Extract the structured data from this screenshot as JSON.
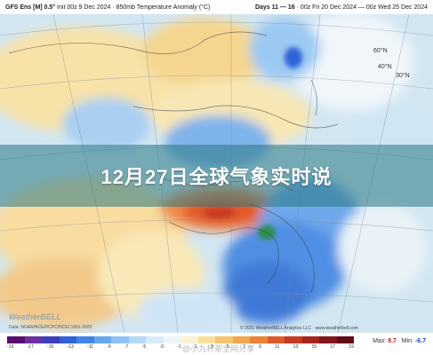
{
  "header": {
    "left_model": "GFS Ens [M] 0.5°",
    "left_rest": "Init 00z 9 Dec 2024 · 850mb Temperature Anomaly (°C)",
    "right_days": "Days 11 — 16",
    "right_rest": " · 00z Fri 20 Dec 2024 — 00z Wed 25 Dec 2024"
  },
  "banner": {
    "title": "12月27日全球气象实时说"
  },
  "latitudes": {
    "lat60": "60°N",
    "lat40": "40°N",
    "lat30": "30°N"
  },
  "logo": {
    "name": "WeatherBELL",
    "sub": "Data: NOAA/NCEP/CPC/NCEI 1991-2020"
  },
  "copyright": "© 2021 WeatherBELL Analytics LLC · www.weatherbell.com",
  "legend": {
    "ticks": [
      "-19",
      "-17",
      "-15",
      "-13",
      "-11",
      "-9",
      "-7",
      "-5",
      "-3",
      "-1",
      "1",
      "3",
      "5",
      "7",
      "9",
      "11",
      "13",
      "15",
      "17",
      "19"
    ],
    "colors": [
      "#5a0f6e",
      "#6b2fa0",
      "#3b3fbf",
      "#2e62d8",
      "#3f86e8",
      "#63a7f0",
      "#8cc3f4",
      "#b4d9f6",
      "#d7ebf7",
      "#eef5f8",
      "#fbf2d2",
      "#f9e09a",
      "#f6c66c",
      "#f2a64b",
      "#ec8137",
      "#e0592b",
      "#c83a24",
      "#a8241e",
      "#85161c",
      "#5f0c16"
    ],
    "max_label": "Max: ",
    "max_value": "8.7",
    "min_label": "Min: ",
    "min_value": "-6.7"
  },
  "watermark": "@小九杯茶全网分享"
}
